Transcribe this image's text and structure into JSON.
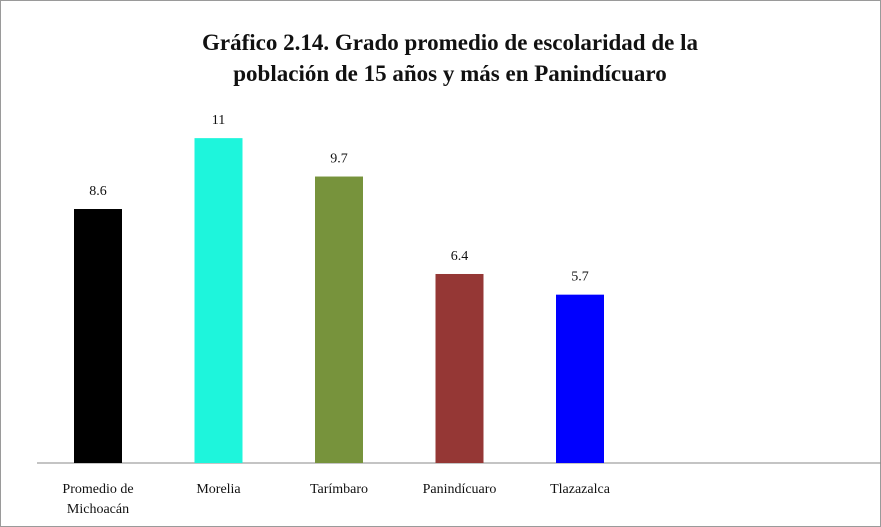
{
  "chart_data": {
    "type": "bar",
    "title": "Gráfico 2.14. Grado promedio de escolaridad de la población de 15 años y más en Panindícuaro",
    "categories": [
      "Promedio de Michoacán",
      "Morelia",
      "Tarímbaro",
      "Panindícuaro",
      "Tlazazalca"
    ],
    "values": [
      8.6,
      11,
      9.7,
      6.4,
      5.7
    ],
    "colors": [
      "#000000",
      "#1ef5dc",
      "#77933c",
      "#953735",
      "#0000ff"
    ],
    "ylim": [
      0,
      12
    ]
  }
}
